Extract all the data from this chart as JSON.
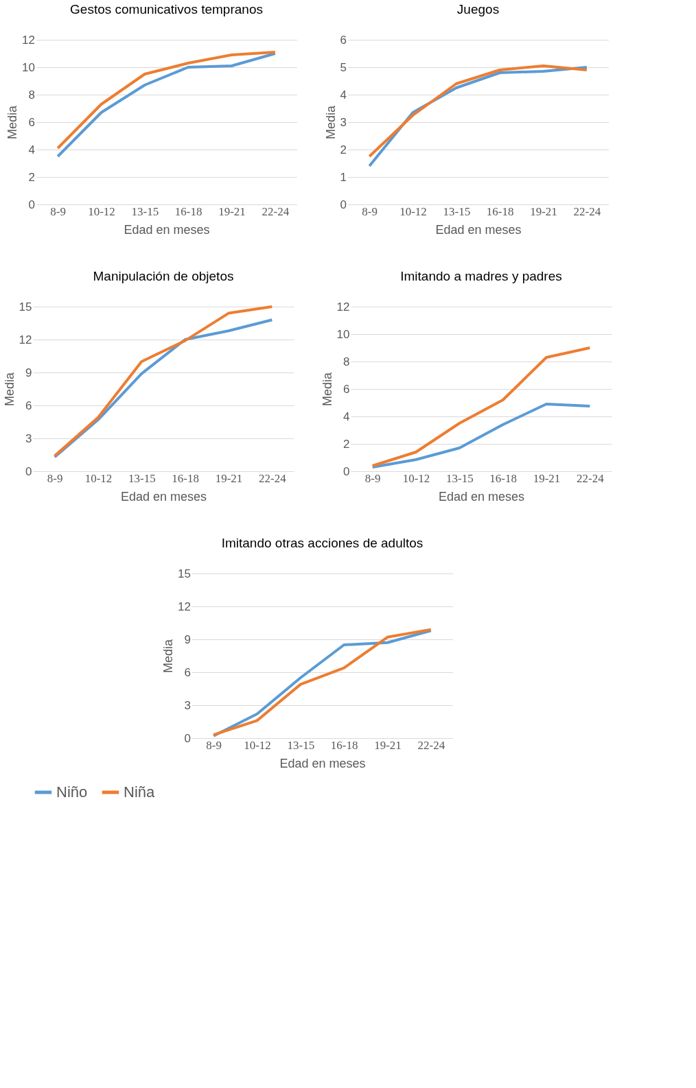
{
  "chart_data": [
    {
      "type": "line",
      "title": "Gestos comunicativos tempranos",
      "xlabel": "Edad en meses",
      "ylabel": "Media",
      "categories": [
        "8-9",
        "10-12",
        "13-15",
        "16-18",
        "19-21",
        "22-24"
      ],
      "ylim": [
        0,
        12
      ],
      "yticks": [
        0,
        2,
        4,
        6,
        8,
        10,
        12
      ],
      "grid": "y",
      "legend": "bottom",
      "series": [
        {
          "name": "Niño",
          "color": "#5b9bd5",
          "values": [
            3.5,
            6.7,
            8.7,
            10.0,
            10.1,
            11.0
          ]
        },
        {
          "name": "Niña",
          "color": "#ed7d31",
          "values": [
            4.1,
            7.3,
            9.5,
            10.3,
            10.9,
            11.1
          ]
        }
      ]
    },
    {
      "type": "line",
      "title": "Juegos",
      "xlabel": "Edad en meses",
      "ylabel": "Media",
      "categories": [
        "8-9",
        "10-12",
        "13-15",
        "16-18",
        "19-21",
        "22-24"
      ],
      "ylim": [
        0,
        6
      ],
      "yticks": [
        0,
        1,
        2,
        3,
        4,
        5,
        6
      ],
      "grid": "y",
      "legend": "bottom",
      "series": [
        {
          "name": "Niño",
          "color": "#5b9bd5",
          "values": [
            1.4,
            3.35,
            4.25,
            4.8,
            4.85,
            5.0
          ]
        },
        {
          "name": "Niña",
          "color": "#ed7d31",
          "values": [
            1.75,
            3.25,
            4.4,
            4.9,
            5.05,
            4.9
          ]
        }
      ]
    },
    {
      "type": "line",
      "title": "Manipulación de objetos",
      "xlabel": "Edad en meses",
      "ylabel": "Media",
      "categories": [
        "8-9",
        "10-12",
        "13-15",
        "16-18",
        "19-21",
        "22-24"
      ],
      "ylim": [
        0,
        15
      ],
      "yticks": [
        0,
        3,
        6,
        9,
        12,
        15
      ],
      "grid": "y",
      "legend": "bottom",
      "series": [
        {
          "name": "Niño",
          "color": "#5b9bd5",
          "values": [
            1.3,
            4.7,
            8.9,
            12.0,
            12.8,
            13.8
          ]
        },
        {
          "name": "Niña",
          "color": "#ed7d31",
          "values": [
            1.4,
            4.9,
            10.0,
            11.9,
            14.4,
            15.0
          ]
        }
      ]
    },
    {
      "type": "line",
      "title": "Imitando a madres y padres",
      "xlabel": "Edad en meses",
      "ylabel": "Media",
      "categories": [
        "8-9",
        "10-12",
        "13-15",
        "16-18",
        "19-21",
        "22-24"
      ],
      "ylim": [
        0,
        12
      ],
      "yticks": [
        0,
        2,
        4,
        6,
        8,
        10,
        12
      ],
      "grid": "y",
      "legend": "bottom",
      "series": [
        {
          "name": "Niño",
          "color": "#5b9bd5",
          "values": [
            0.3,
            0.85,
            1.7,
            3.4,
            4.9,
            4.75
          ]
        },
        {
          "name": "Niña",
          "color": "#ed7d31",
          "values": [
            0.4,
            1.4,
            3.5,
            5.2,
            8.3,
            9.0
          ]
        }
      ]
    },
    {
      "type": "line",
      "title": "Imitando otras acciones de adultos",
      "xlabel": "Edad en meses",
      "ylabel": "Media",
      "categories": [
        "8-9",
        "10-12",
        "13-15",
        "16-18",
        "19-21",
        "22-24"
      ],
      "ylim": [
        0,
        15
      ],
      "yticks": [
        0,
        3,
        6,
        9,
        12,
        15
      ],
      "grid": "y",
      "legend": "bottom",
      "series": [
        {
          "name": "Niño",
          "color": "#5b9bd5",
          "values": [
            0.2,
            2.2,
            5.5,
            8.5,
            8.7,
            9.8
          ]
        },
        {
          "name": "Niña",
          "color": "#ed7d31",
          "values": [
            0.3,
            1.6,
            4.9,
            6.4,
            9.2,
            9.9
          ]
        }
      ]
    }
  ]
}
